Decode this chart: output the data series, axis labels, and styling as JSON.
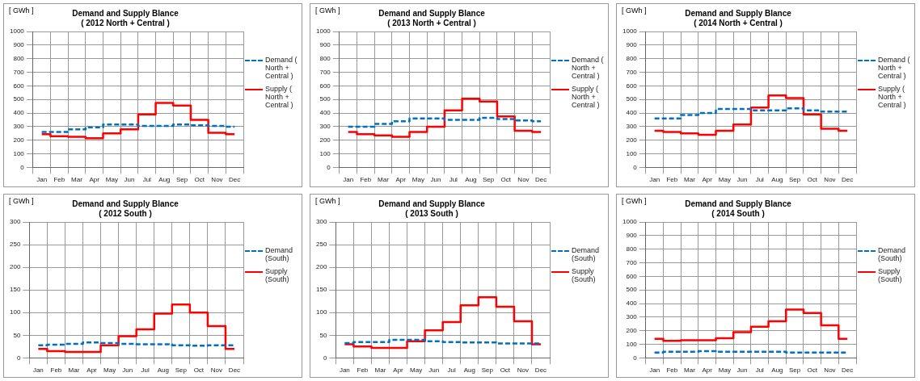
{
  "chart_data": [
    {
      "type": "step",
      "title": "Demand and Supply Blance",
      "subtitle": "( 2012 North + Central )",
      "ylabel": "[ GWh ]",
      "categories": [
        "Jan",
        "Feb",
        "Mar",
        "Apr",
        "May",
        "Jun",
        "Jul",
        "Aug",
        "Sep",
        "Oct",
        "Nov",
        "Dec"
      ],
      "series": [
        {
          "name": "Demand ( North + Central )",
          "color": "#0070c0",
          "line_style": "dashed",
          "values": [
            260,
            260,
            280,
            295,
            315,
            315,
            305,
            305,
            315,
            310,
            305,
            300
          ]
        },
        {
          "name": "Supply ( North + Central )",
          "color": "#ff0000",
          "line_style": "solid",
          "values": [
            245,
            230,
            225,
            215,
            250,
            280,
            390,
            475,
            455,
            350,
            255,
            245
          ]
        }
      ],
      "ylim": [
        0,
        1000
      ],
      "yticks": [
        0,
        100,
        200,
        300,
        400,
        500,
        600,
        700,
        800,
        900,
        1000
      ],
      "grid": true,
      "legend": "right",
      "marker": "none"
    },
    {
      "type": "step",
      "title": "Demand and Supply Blance",
      "subtitle": "( 2013 North + Central )",
      "ylabel": "[ GWh ]",
      "categories": [
        "Jan",
        "Feb",
        "Mar",
        "Apr",
        "May",
        "Jun",
        "Jul",
        "Aug",
        "Sep",
        "Oct",
        "Nov",
        "Dec"
      ],
      "series": [
        {
          "name": "Demand ( North + Central )",
          "color": "#0070c0",
          "line_style": "dashed",
          "values": [
            300,
            300,
            320,
            340,
            360,
            360,
            350,
            350,
            365,
            355,
            345,
            340
          ]
        },
        {
          "name": "Supply ( North + Central )",
          "color": "#ff0000",
          "line_style": "solid",
          "values": [
            260,
            245,
            235,
            225,
            260,
            300,
            420,
            505,
            485,
            375,
            270,
            260
          ]
        }
      ],
      "ylim": [
        0,
        1000
      ],
      "yticks": [
        0,
        100,
        200,
        300,
        400,
        500,
        600,
        700,
        800,
        900,
        1000
      ],
      "grid": true,
      "legend": "right",
      "marker": "none"
    },
    {
      "type": "step",
      "title": "Demand and Supply Blance",
      "subtitle": "( 2014 North + Central )",
      "ylabel": "[ GWh ]",
      "categories": [
        "Jan",
        "Feb",
        "Mar",
        "Apr",
        "May",
        "Jun",
        "Jul",
        "Aug",
        "Sep",
        "Oct",
        "Nov",
        "Dec"
      ],
      "series": [
        {
          "name": "Demand ( North + Central )",
          "color": "#0070c0",
          "line_style": "dashed",
          "values": [
            360,
            360,
            385,
            400,
            430,
            430,
            420,
            420,
            435,
            420,
            410,
            410
          ]
        },
        {
          "name": "Supply ( North + Central )",
          "color": "#ff0000",
          "line_style": "solid",
          "values": [
            270,
            260,
            250,
            240,
            270,
            315,
            440,
            530,
            510,
            390,
            285,
            270
          ]
        }
      ],
      "ylim": [
        0,
        1000
      ],
      "yticks": [
        0,
        100,
        200,
        300,
        400,
        500,
        600,
        700,
        800,
        900,
        1000
      ],
      "grid": true,
      "legend": "right",
      "marker": "none"
    },
    {
      "type": "step",
      "title": "Demand and Supply Blance",
      "subtitle": "( 2012 South )",
      "ylabel": "[ GWh ]",
      "categories": [
        "Jan",
        "Feb",
        "Mar",
        "Apr",
        "May",
        "Jun",
        "Jul",
        "Aug",
        "Sep",
        "Oct",
        "Nov",
        "Dec"
      ],
      "series": [
        {
          "name": "Demand (South)",
          "color": "#0070c0",
          "line_style": "dashed",
          "values": [
            28,
            29,
            31,
            34,
            33,
            31,
            30,
            30,
            28,
            27,
            28,
            28
          ]
        },
        {
          "name": "Supply (South)",
          "color": "#ff0000",
          "line_style": "solid",
          "values": [
            20,
            15,
            13,
            13,
            28,
            48,
            63,
            98,
            118,
            100,
            70,
            20
          ]
        }
      ],
      "ylim": [
        0,
        300
      ],
      "yticks": [
        0,
        50,
        100,
        150,
        200,
        250,
        300
      ],
      "grid": true,
      "legend": "right",
      "marker": "none"
    },
    {
      "type": "step",
      "title": "Demand and Supply Blance",
      "subtitle": "( 2013 South )",
      "ylabel": "[ GWh ]",
      "categories": [
        "Jan",
        "Feb",
        "Mar",
        "Apr",
        "May",
        "Jun",
        "Jul",
        "Aug",
        "Sep",
        "Oct",
        "Nov",
        "Dec"
      ],
      "series": [
        {
          "name": "Demand (South)",
          "color": "#0070c0",
          "line_style": "dashed",
          "values": [
            33,
            35,
            35,
            40,
            40,
            37,
            35,
            34,
            34,
            32,
            32,
            32
          ]
        },
        {
          "name": "Supply (South)",
          "color": "#ff0000",
          "line_style": "solid",
          "values": [
            30,
            25,
            22,
            22,
            37,
            61,
            79,
            116,
            134,
            113,
            81,
            30
          ]
        }
      ],
      "ylim": [
        0,
        300
      ],
      "yticks": [
        0,
        50,
        100,
        150,
        200,
        250,
        300
      ],
      "grid": true,
      "legend": "right",
      "marker": "none"
    },
    {
      "type": "step",
      "title": "Demand and Supply Blance",
      "subtitle": "( 2014 South )",
      "ylabel": "[ GWh ]",
      "categories": [
        "Jan",
        "Feb",
        "Mar",
        "Apr",
        "May",
        "Jun",
        "Jul",
        "Aug",
        "Sep",
        "Oct",
        "Nov",
        "Dec"
      ],
      "series": [
        {
          "name": "Demand (South)",
          "color": "#0070c0",
          "line_style": "dashed",
          "values": [
            40,
            45,
            45,
            50,
            45,
            45,
            45,
            45,
            40,
            40,
            40,
            40
          ]
        },
        {
          "name": "Supply (South)",
          "color": "#ff0000",
          "line_style": "solid",
          "values": [
            140,
            125,
            130,
            130,
            145,
            190,
            230,
            270,
            355,
            330,
            240,
            140
          ]
        }
      ],
      "ylim": [
        0,
        1000
      ],
      "yticks": [
        0,
        100,
        200,
        300,
        400,
        500,
        600,
        700,
        800,
        900,
        1000
      ],
      "grid": true,
      "legend": "right",
      "marker": "none"
    }
  ]
}
